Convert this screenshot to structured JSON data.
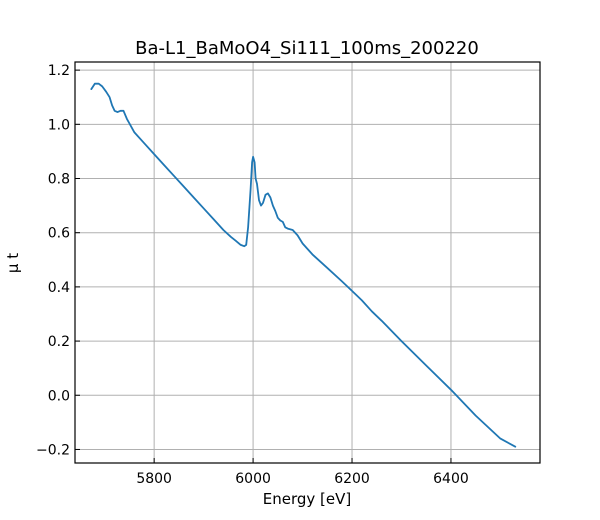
{
  "chart_data": {
    "type": "line",
    "title": "Ba-L1_BaMoO4_Si111_100ms_200220",
    "xlabel": "Energy [eV]",
    "ylabel": "μ t",
    "xlim": [
      5640,
      6580
    ],
    "ylim": [
      -0.25,
      1.23
    ],
    "x_ticks": [
      5800,
      6000,
      6200,
      6400
    ],
    "y_ticks": [
      -0.2,
      0.0,
      0.2,
      0.4,
      0.6,
      0.8,
      1.0,
      1.2
    ],
    "x_tick_labels": [
      "5800",
      "6000",
      "6200",
      "6400"
    ],
    "y_tick_labels": [
      "−0.2",
      "0.0",
      "0.2",
      "0.4",
      "0.6",
      "0.8",
      "1.0",
      "1.2"
    ],
    "grid": true,
    "series": [
      {
        "color": "#1f77b4",
        "x": [
          5673,
          5680,
          5688,
          5695,
          5703,
          5710,
          5715,
          5720,
          5726,
          5732,
          5738,
          5745,
          5760,
          5780,
          5800,
          5820,
          5840,
          5860,
          5880,
          5900,
          5920,
          5940,
          5955,
          5965,
          5975,
          5982,
          5986,
          5990,
          5995,
          5998,
          6000,
          6003,
          6005,
          6008,
          6012,
          6016,
          6020,
          6025,
          6030,
          6035,
          6040,
          6045,
          6050,
          6055,
          6060,
          6065,
          6070,
          6080,
          6090,
          6100,
          6120,
          6150,
          6180,
          6200,
          6220,
          6240,
          6260,
          6300,
          6350,
          6400,
          6450,
          6500,
          6530
        ],
        "y": [
          1.13,
          1.15,
          1.15,
          1.14,
          1.12,
          1.1,
          1.07,
          1.05,
          1.045,
          1.05,
          1.05,
          1.02,
          0.97,
          0.93,
          0.89,
          0.85,
          0.81,
          0.77,
          0.73,
          0.69,
          0.65,
          0.61,
          0.585,
          0.57,
          0.555,
          0.55,
          0.555,
          0.62,
          0.76,
          0.86,
          0.88,
          0.86,
          0.8,
          0.78,
          0.72,
          0.7,
          0.71,
          0.74,
          0.745,
          0.73,
          0.7,
          0.68,
          0.655,
          0.645,
          0.64,
          0.62,
          0.615,
          0.61,
          0.59,
          0.56,
          0.52,
          0.47,
          0.42,
          0.385,
          0.35,
          0.31,
          0.275,
          0.2,
          0.11,
          0.02,
          -0.075,
          -0.16,
          -0.19
        ]
      }
    ]
  }
}
